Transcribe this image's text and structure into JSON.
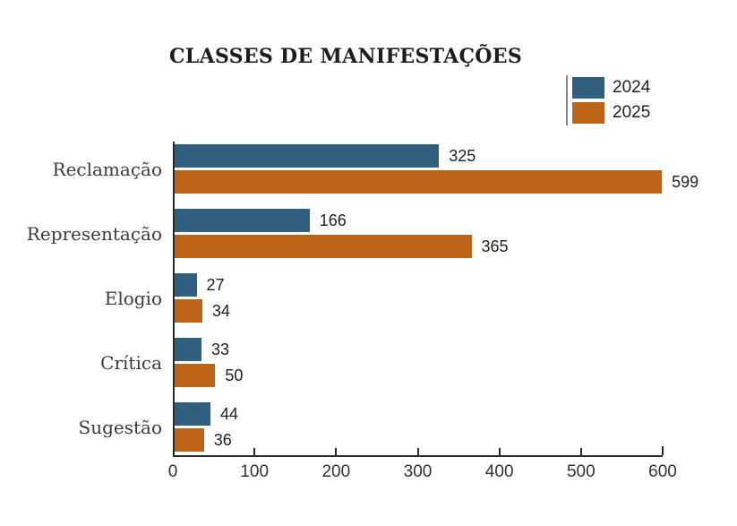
{
  "title": "CLASSES DE MANIFESTAÇÕES",
  "colors": {
    "series_2024": "#2F5E7E",
    "series_2025": "#BD6417",
    "axis": "#2a2a2a"
  },
  "chart_data": {
    "type": "bar",
    "orientation": "horizontal",
    "title": "CLASSES DE MANIFESTAÇÕES",
    "categories": [
      "Reclamação",
      "Representação",
      "Elogio",
      "Crítica",
      "Sugestão"
    ],
    "series": [
      {
        "name": "2024",
        "color": "#2F5E7E",
        "values": [
          325,
          166,
          27,
          33,
          44
        ]
      },
      {
        "name": "2025",
        "color": "#BD6417",
        "values": [
          599,
          365,
          34,
          50,
          36
        ]
      }
    ],
    "xlim": [
      0,
      600
    ],
    "xticks": [
      0,
      100,
      200,
      300,
      400,
      500,
      600
    ],
    "xlabel": "",
    "ylabel": "",
    "grid": false,
    "legend_position": "top-right",
    "value_labels": true
  }
}
